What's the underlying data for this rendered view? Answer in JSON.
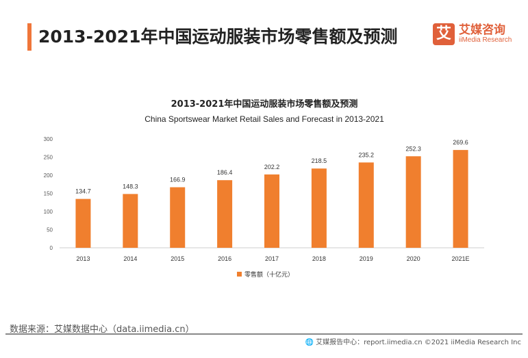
{
  "header": {
    "title": "2013-2021年中国运动服装市场零售额及预测",
    "accent_color": "#f0763a"
  },
  "logo": {
    "mark": "艾",
    "name_cn": "艾媒咨询",
    "name_en": "iiMedia Research",
    "color": "#e0603a"
  },
  "chart_data": {
    "type": "bar",
    "title": "2013-2021年中国运动服装市场零售额及预测",
    "subtitle": "China Sportswear Market Retail Sales and Forecast  in 2013-2021",
    "categories": [
      "2013",
      "2014",
      "2015",
      "2016",
      "2017",
      "2018",
      "2019",
      "2020",
      "2021E"
    ],
    "series": [
      {
        "name": "零售额（十亿元）",
        "values": [
          134.7,
          148.3,
          166.9,
          186.4,
          202.2,
          218.5,
          235.2,
          252.3,
          269.6
        ],
        "color": "#f07f2e"
      }
    ],
    "ylim": [
      0,
      300
    ],
    "yticks": [
      0,
      50,
      100,
      150,
      200,
      250,
      300
    ],
    "grid": false,
    "legend": "bottom"
  },
  "footer": {
    "source": "数据来源：艾媒数据中心（data.iimedia.cn）",
    "credit": "艾媒报告中心：report.iimedia.cn   ©2021  iiMedia Research  Inc"
  }
}
